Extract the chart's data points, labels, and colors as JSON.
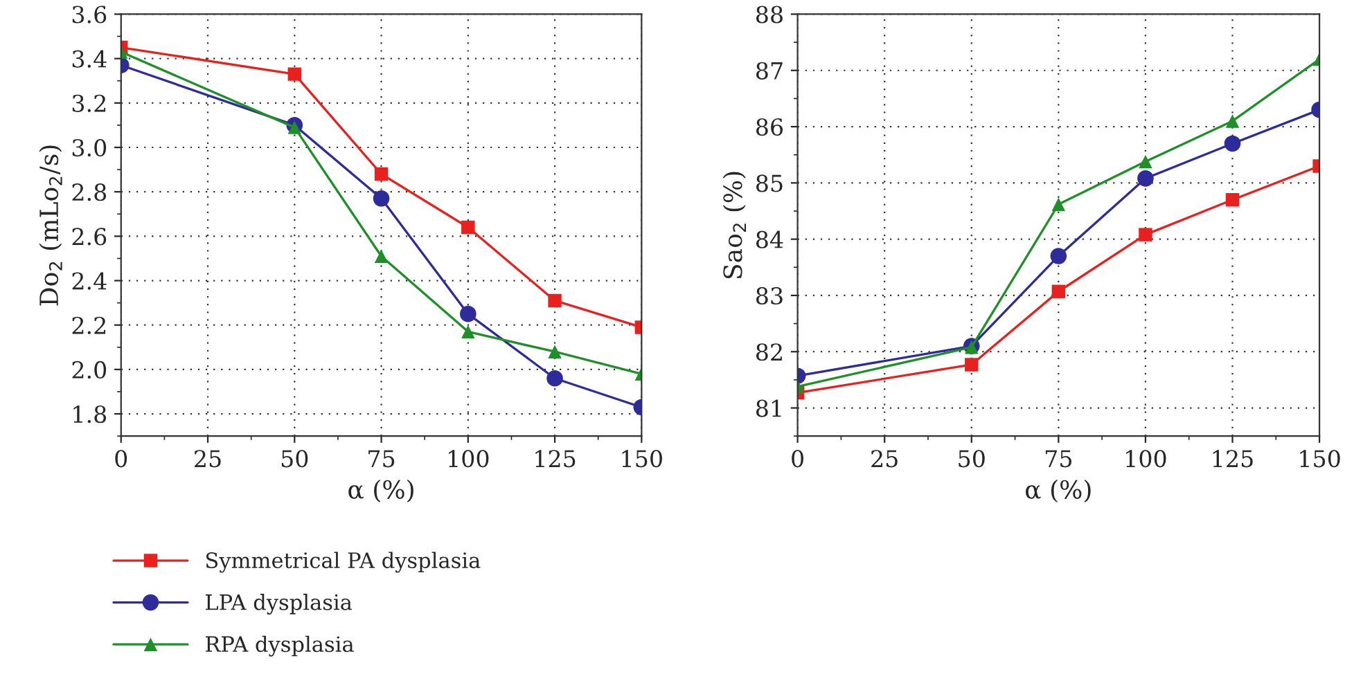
{
  "chart_data": [
    {
      "type": "line",
      "xlabel": "α (%)",
      "ylabel": "Do$_{2}$ (mLo$_{2}$/s)",
      "x": [
        0,
        50,
        75,
        100,
        125,
        150
      ],
      "xlim": [
        0,
        150
      ],
      "xticks": [
        0,
        25,
        50,
        75,
        100,
        125,
        150
      ],
      "ylim": [
        1.7,
        3.6
      ],
      "yticks": [
        {
          "value": 1.8,
          "label": "1.8"
        },
        {
          "value": 2.0,
          "label": "2.0"
        },
        {
          "value": 2.2,
          "label": "2.2"
        },
        {
          "value": 2.4,
          "label": "2.4"
        },
        {
          "value": 2.6,
          "label": "2.6"
        },
        {
          "value": 2.8,
          "label": "2.8"
        },
        {
          "value": 3.0,
          "label": "3.0"
        },
        {
          "value": 3.2,
          "label": "3.2"
        },
        {
          "value": 3.4,
          "label": "3.4"
        },
        {
          "value": 3.6,
          "label": "3.6"
        }
      ],
      "grid": true,
      "legend": "bottom",
      "series": [
        {
          "name": "Symmetrical PA dysplasia",
          "color": "#e8211f",
          "marker": "square",
          "values": [
            3.45,
            3.33,
            2.88,
            2.64,
            2.31,
            2.19
          ]
        },
        {
          "name": "LPA dysplasia",
          "color": "#2e2c9a",
          "marker": "circle",
          "values": [
            3.37,
            3.1,
            2.77,
            2.25,
            1.96,
            1.83
          ]
        },
        {
          "name": "RPA dysplasia",
          "color": "#1f8f2a",
          "marker": "triangle",
          "values": [
            3.43,
            3.09,
            2.51,
            2.17,
            2.08,
            1.98
          ]
        }
      ]
    },
    {
      "type": "line",
      "xlabel": "α (%)",
      "ylabel": "Sao$_{2}$ (%)",
      "x": [
        0,
        50,
        75,
        100,
        125,
        150
      ],
      "xlim": [
        0,
        150
      ],
      "xticks": [
        0,
        25,
        50,
        75,
        100,
        125,
        150
      ],
      "ylim": [
        80.5,
        88
      ],
      "yticks": [
        81,
        82,
        83,
        84,
        85,
        86,
        87,
        88
      ],
      "grid": true,
      "series": [
        {
          "color": "#e8211f",
          "marker": "square",
          "values": [
            81.27,
            81.77,
            83.07,
            84.08,
            84.7,
            85.3
          ]
        },
        {
          "color": "#2e2c9a",
          "marker": "circle",
          "values": [
            81.57,
            82.1,
            83.7,
            85.08,
            85.7,
            86.3
          ]
        },
        {
          "color": "#1f8f2a",
          "marker": "triangle",
          "values": [
            81.38,
            82.08,
            84.62,
            85.38,
            86.1,
            87.2
          ]
        }
      ]
    }
  ]
}
